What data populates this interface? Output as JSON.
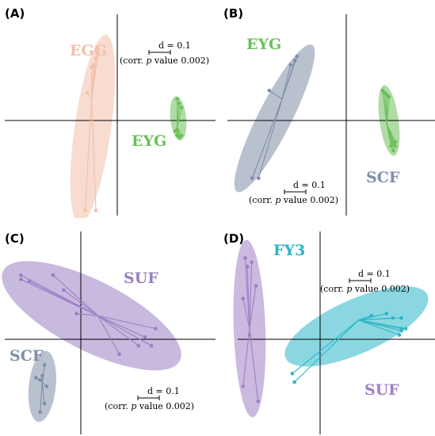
{
  "chart_data": [
    {
      "type": "scatter",
      "panel_label": "(A)",
      "scale_bar": {
        "d": "d = 0.1",
        "pre": "(corr. ",
        "p": "p",
        "post": " value 0.002)"
      },
      "groups": [
        {
          "name": "EGG",
          "color": "#f2bfaa",
          "centroid": [
            -0.12,
            0.1
          ],
          "points": [
            [
              -0.09,
              0.33
            ],
            [
              -0.09,
              0.31
            ],
            [
              -0.1,
              0.29
            ],
            [
              -0.11,
              0.26
            ],
            [
              -0.12,
              0.25
            ],
            [
              -0.14,
              0.13
            ],
            [
              -0.15,
              -0.42
            ],
            [
              -0.1,
              -0.42
            ]
          ]
        },
        {
          "name": "EYG",
          "color": "#6cbf5a",
          "centroid": [
            0.28,
            -0.03
          ],
          "points": [
            [
              0.28,
              0.1
            ],
            [
              0.29,
              0.08
            ],
            [
              0.3,
              0.06
            ],
            [
              0.3,
              -0.07
            ],
            [
              0.29,
              -0.08
            ],
            [
              0.28,
              -0.07
            ],
            [
              0.27,
              -0.05
            ],
            [
              0.28,
              -0.07
            ]
          ]
        }
      ]
    },
    {
      "type": "scatter",
      "panel_label": "(B)",
      "scale_bar": {
        "d": "d = 0.1",
        "pre": "(corr. ",
        "p": "p",
        "post": " value 0.002)"
      },
      "groups": [
        {
          "name": "SCF",
          "color": "#7f8ea8",
          "centroid": [
            -0.3,
            0.1
          ],
          "points": [
            [
              -0.23,
              0.3
            ],
            [
              -0.24,
              0.28
            ],
            [
              -0.26,
              0.26
            ],
            [
              -0.36,
              0.14
            ],
            [
              -0.41,
              -0.27
            ],
            [
              -0.44,
              -0.27
            ]
          ]
        },
        {
          "name": "EYG",
          "color": "#6cbf5a",
          "centroid": [
            0.19,
            -0.02
          ],
          "points": [
            [
              0.17,
              0.14
            ],
            [
              0.18,
              0.13
            ],
            [
              0.19,
              0.12
            ],
            [
              0.2,
              0.11
            ],
            [
              0.21,
              -0.12
            ],
            [
              0.22,
              -0.11
            ],
            [
              0.23,
              -0.1
            ],
            [
              0.23,
              -0.12
            ],
            [
              0.22,
              -0.14
            ]
          ]
        }
      ]
    },
    {
      "type": "scatter",
      "panel_label": "(C)",
      "scale_bar": {
        "d": "d = 0.1",
        "pre": "(corr. ",
        "p": "p",
        "post": " value 0.002)"
      },
      "groups": [
        {
          "name": "SUF",
          "color": "#9a7fc2",
          "centroid": [
            0.08,
            0.11
          ],
          "points": [
            [
              -0.28,
              0.3
            ],
            [
              -0.28,
              0.28
            ],
            [
              -0.24,
              0.27
            ],
            [
              -0.13,
              0.3
            ],
            [
              -0.08,
              0.23
            ],
            [
              -0.02,
              0.12
            ],
            [
              0.35,
              0.05
            ],
            [
              0.3,
              0.01
            ],
            [
              0.27,
              -0.03
            ],
            [
              0.18,
              -0.07
            ],
            [
              0.33,
              -0.03
            ]
          ]
        },
        {
          "name": "SCF",
          "color": "#7f8ea8",
          "centroid": [
            -0.18,
            -0.2
          ],
          "points": [
            [
              -0.17,
              -0.12
            ],
            [
              -0.18,
              -0.17
            ],
            [
              -0.19,
              -0.19
            ],
            [
              -0.21,
              -0.18
            ],
            [
              -0.16,
              -0.22
            ],
            [
              -0.17,
              -0.3
            ],
            [
              -0.19,
              -0.34
            ]
          ]
        }
      ]
    },
    {
      "type": "scatter",
      "panel_label": "(D)",
      "scale_bar": {
        "d": "d = 0.1",
        "pre": "(corr. ",
        "p": "p",
        "post": " value 0.002)"
      },
      "groups": [
        {
          "name": "SUF",
          "color": "#a07fc4",
          "centroid": [
            -0.33,
            0.05
          ],
          "points": [
            [
              -0.35,
              0.38
            ],
            [
              -0.32,
              0.36
            ],
            [
              -0.34,
              0.34
            ],
            [
              -0.3,
              0.25
            ],
            [
              -0.36,
              0.19
            ],
            [
              -0.33,
              0.02
            ],
            [
              -0.36,
              -0.22
            ],
            [
              -0.29,
              -0.29
            ]
          ]
        },
        {
          "name": "FY3",
          "color": "#2bb6c8",
          "centroid": [
            0.18,
            0.09
          ],
          "points": [
            [
              0.24,
              0.11
            ],
            [
              0.31,
              0.12
            ],
            [
              0.34,
              0.1
            ],
            [
              0.38,
              0.1
            ],
            [
              0.38,
              0.05
            ],
            [
              0.4,
              0.05
            ],
            [
              0.38,
              0.04
            ],
            [
              0.37,
              0.02
            ],
            [
              -0.12,
              -0.2
            ],
            [
              -0.13,
              -0.16
            ]
          ]
        }
      ]
    }
  ]
}
